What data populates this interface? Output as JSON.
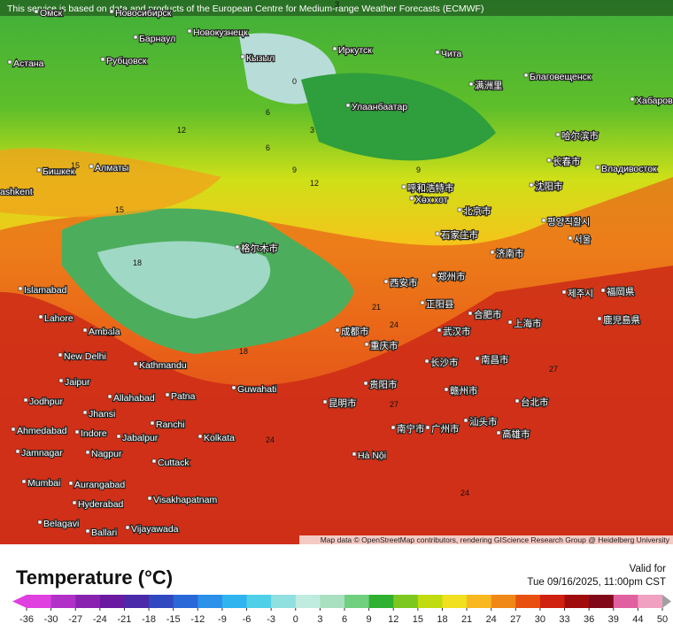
{
  "header": {
    "notice": "This service is based on data and products of the European Centre for Medium-range Weather Forecasts (ECMWF)"
  },
  "map": {
    "attribution": "Map data © OpenStreetMap contributors, rendering GIScience Research Group @ Heidelberg University",
    "cities": [
      "Омск",
      "Новосибирск",
      "Барнаул",
      "Новокузнецк",
      "Астана",
      "Рубцовск",
      "Кызыл",
      "Иркутск",
      "Чита",
      "Благовещенск",
      "Хабаровск",
      "Улаанбаатар",
      "满洲里",
      "哈尔滨市",
      "长春市",
      "Владивосток",
      "沈阳市",
      "Бишкек",
      "Алматы",
      "ashkent",
      "呼和浩特市",
      "Хөх хот",
      "北京市",
      "평양직할시",
      "石家庄市",
      "서울",
      "格尔木市",
      "济南市",
      "西安市",
      "郑州市",
      "Islamabad",
      "제주시",
      "福岡県",
      "鹿児島県",
      "正阳县",
      "合肥市",
      "上海市",
      "Lahore",
      "Ambala",
      "成都市",
      "武汉市",
      "重庆市",
      "New Delhi",
      "Kathmandu",
      "长沙市",
      "南昌市",
      "Guwahati",
      "贵阳市",
      "Jaipur",
      "Allahabad",
      "Patna",
      "赣州市",
      "台北市",
      "Jodhpur",
      "Jhansi",
      "Ranchi",
      "昆明市",
      "Ahmedabad",
      "Indore",
      "Jabalpur",
      "Kolkata",
      "南宁市",
      "广州市",
      "汕头市",
      "高雄市",
      "Jamnagar",
      "Nagpur",
      "Cuttack",
      "Hà Nội",
      "Mumbai",
      "Aurangabad",
      "Hyderabad",
      "Visakhapatnam",
      "Belagavi",
      "Vijayawada",
      "Ballari"
    ],
    "contour_labels": [
      3,
      0,
      6,
      9,
      12,
      15,
      18,
      21,
      24,
      27,
      12,
      9,
      6,
      3,
      15,
      18,
      24,
      21,
      27,
      24
    ]
  },
  "legend": {
    "title": "Temperature (°C)",
    "valid_label": "Valid for",
    "valid_time": "Tue 09/16/2025, 11:00pm CST",
    "ticks": [
      -36,
      -30,
      -27,
      -24,
      -21,
      -18,
      -15,
      -12,
      -9,
      -6,
      -3,
      0,
      3,
      6,
      9,
      12,
      15,
      18,
      21,
      24,
      27,
      30,
      33,
      36,
      39,
      44,
      50
    ],
    "colors": [
      "#e040e0",
      "#b030c8",
      "#8a22b0",
      "#6a1aa0",
      "#4a2aa8",
      "#3048c0",
      "#2a68d8",
      "#2a90e8",
      "#30b4f0",
      "#50d0e8",
      "#90e0e0",
      "#c0ece0",
      "#a8e0c0",
      "#70d080",
      "#30b030",
      "#7cc820",
      "#c0dc10",
      "#f0e020",
      "#f8b820",
      "#f08818",
      "#e85010",
      "#d02010",
      "#a00c0c",
      "#800818",
      "#e060a0",
      "#f0a0c0",
      "#a0a0a0"
    ]
  }
}
